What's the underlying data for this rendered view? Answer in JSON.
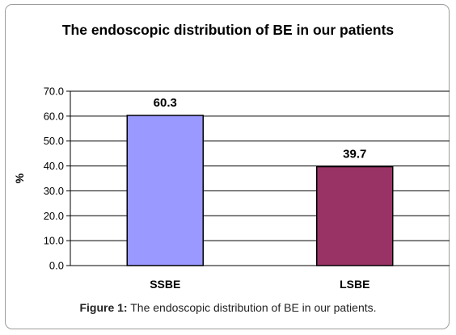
{
  "chart_data": {
    "type": "bar",
    "title": "The endoscopic distribution of BE in our patients",
    "categories": [
      "SSBE",
      "LSBE"
    ],
    "values": [
      60.3,
      39.7
    ],
    "value_labels": [
      "60.3",
      "39.7"
    ],
    "colors": [
      "#9999ff",
      "#993366"
    ],
    "ylabel": "%",
    "xlabel": "",
    "ylim": [
      0,
      70
    ],
    "yticks": [
      "0.0",
      "10.0",
      "20.0",
      "30.0",
      "40.0",
      "50.0",
      "60.0",
      "70.0"
    ],
    "grid": true,
    "legend": "none"
  },
  "caption": {
    "label": "Figure 1:",
    "text": " The endoscopic distribution of BE in our patients."
  }
}
